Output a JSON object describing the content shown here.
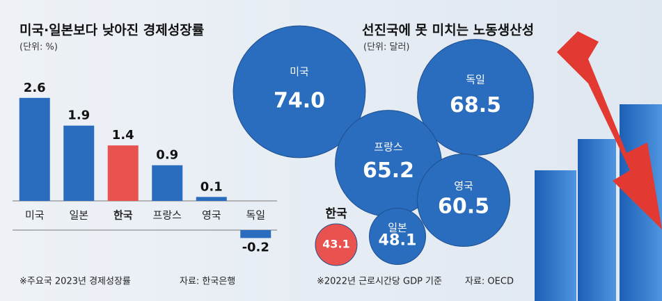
{
  "chart_data": [
    {
      "type": "bar",
      "title": "미국·일본보다 낮아진 경제성장률",
      "subtitle": "(단위: %)",
      "categories": [
        "미국",
        "일본",
        "한국",
        "프랑스",
        "영국",
        "독일"
      ],
      "values": [
        2.6,
        1.9,
        1.4,
        0.9,
        0.1,
        -0.2
      ],
      "colors": [
        "#2a6cbd",
        "#2a6cbd",
        "#e8534f",
        "#2a6cbd",
        "#2a6cbd",
        "#2a6cbd"
      ],
      "note": "※주요국 2023년 경제성장률",
      "source": "자료: 한국은행"
    },
    {
      "type": "bubble",
      "title": "선진국에 못 미치는 노동생산성",
      "subtitle": "(단위: 달러)",
      "categories": [
        "미국",
        "독일",
        "프랑스",
        "영국",
        "일본",
        "한국"
      ],
      "values": [
        74.0,
        68.5,
        65.2,
        60.5,
        48.1,
        43.1
      ],
      "value_labels": [
        "74.0",
        "68.5",
        "65.2",
        "60.5",
        "48.1",
        "43.1"
      ],
      "colors": [
        "#2a6cbd",
        "#2a6cbd",
        "#2a6cbd",
        "#2a6cbd",
        "#2a6cbd",
        "#e8534f"
      ],
      "note": "※2022년 근로시간당 GDP 기준",
      "source": "자료: OECD"
    }
  ]
}
